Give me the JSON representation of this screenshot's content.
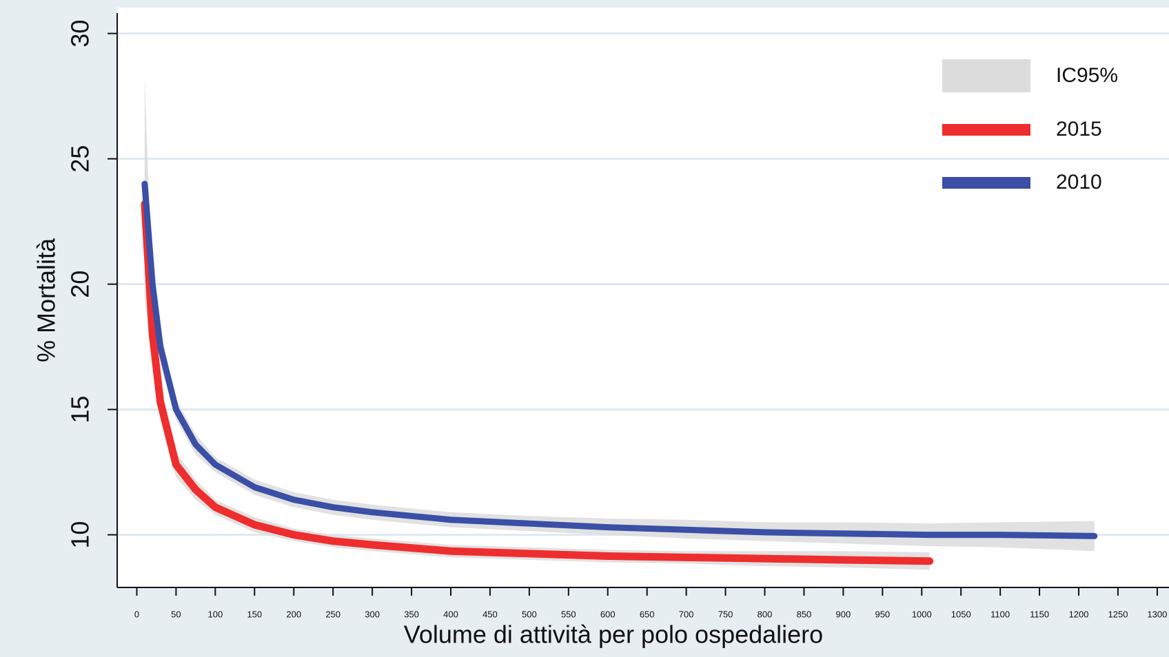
{
  "chart_data": {
    "type": "line",
    "x_label": "Volume di attività per polo ospedaliero",
    "y_label": "% Mortalità",
    "x": [
      10,
      20,
      30,
      50,
      75,
      100,
      150,
      200,
      250,
      300,
      400,
      500,
      600,
      700,
      800,
      900,
      1010,
      1100,
      1220
    ],
    "band_name": "IC95%",
    "band_color": "#dcdcdc",
    "series": [
      {
        "name": "2015",
        "color": "#ee2e2e",
        "values": [
          23.2,
          18.0,
          15.3,
          12.8,
          11.8,
          11.1,
          10.4,
          10.0,
          9.75,
          9.6,
          9.35,
          9.25,
          9.15,
          9.1,
          9.05,
          9.0,
          8.95,
          null,
          null
        ],
        "upper": [
          28.3,
          19.5,
          16.0,
          13.3,
          12.2,
          11.4,
          10.7,
          10.25,
          10.0,
          9.85,
          9.6,
          9.5,
          9.4,
          9.35,
          9.35,
          9.35,
          9.3,
          null,
          null
        ],
        "lower": [
          19.5,
          16.8,
          14.6,
          12.3,
          11.4,
          10.8,
          10.1,
          9.75,
          9.5,
          9.35,
          9.1,
          9.0,
          8.9,
          8.85,
          8.75,
          8.7,
          8.6,
          null,
          null
        ]
      },
      {
        "name": "2010",
        "color": "#3a4fa5",
        "values": [
          24.0,
          20.0,
          17.5,
          15.0,
          13.6,
          12.8,
          11.9,
          11.4,
          11.1,
          10.9,
          10.6,
          10.45,
          10.3,
          10.2,
          10.1,
          10.05,
          10.0,
          10.0,
          9.95
        ],
        "upper": [
          26.0,
          21.2,
          18.2,
          15.4,
          14.0,
          13.1,
          12.2,
          11.7,
          11.4,
          11.2,
          10.9,
          10.75,
          10.65,
          10.6,
          10.5,
          10.5,
          10.45,
          10.5,
          10.55
        ],
        "lower": [
          22.5,
          19.0,
          16.8,
          14.6,
          13.2,
          12.5,
          11.6,
          11.1,
          10.8,
          10.6,
          10.3,
          10.15,
          10.0,
          9.85,
          9.75,
          9.65,
          9.55,
          9.5,
          9.35
        ]
      }
    ],
    "xlim": [
      -25,
      1315
    ],
    "xticks": [
      0,
      50,
      100,
      150,
      200,
      250,
      300,
      350,
      400,
      450,
      500,
      550,
      600,
      650,
      700,
      750,
      800,
      850,
      900,
      950,
      1000,
      1050,
      1100,
      1150,
      1200,
      1250,
      1300
    ],
    "ylim": [
      7.9,
      30.8
    ],
    "yticks": [
      10,
      15,
      20,
      25,
      30
    ],
    "grid": true,
    "grid_color": "#dde9ef",
    "legend": "upper right"
  }
}
